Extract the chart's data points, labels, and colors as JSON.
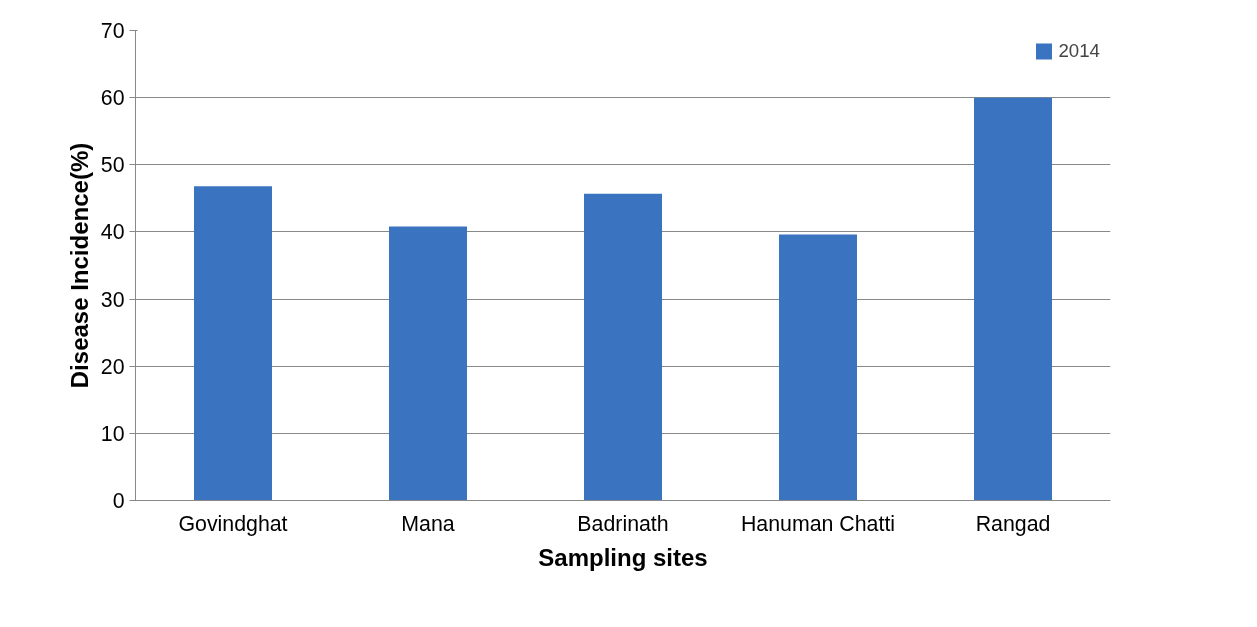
{
  "chart_data": {
    "type": "bar",
    "xlabel": "Sampling sites",
    "ylabel": "Disease Incidence(%)",
    "categories": [
      "Govindghat",
      "Mana",
      "Badrinath",
      "Hanuman Chatti",
      "Rangad"
    ],
    "series": [
      {
        "name": "2014",
        "color": "#3a73c0",
        "values": [
          46.8,
          40.8,
          45.7,
          39.6,
          60
        ]
      }
    ],
    "ylim": [
      0,
      70
    ],
    "yticks": [
      0,
      10,
      20,
      30,
      40,
      50,
      60,
      70
    ],
    "grid": "y",
    "legend": "top right"
  }
}
